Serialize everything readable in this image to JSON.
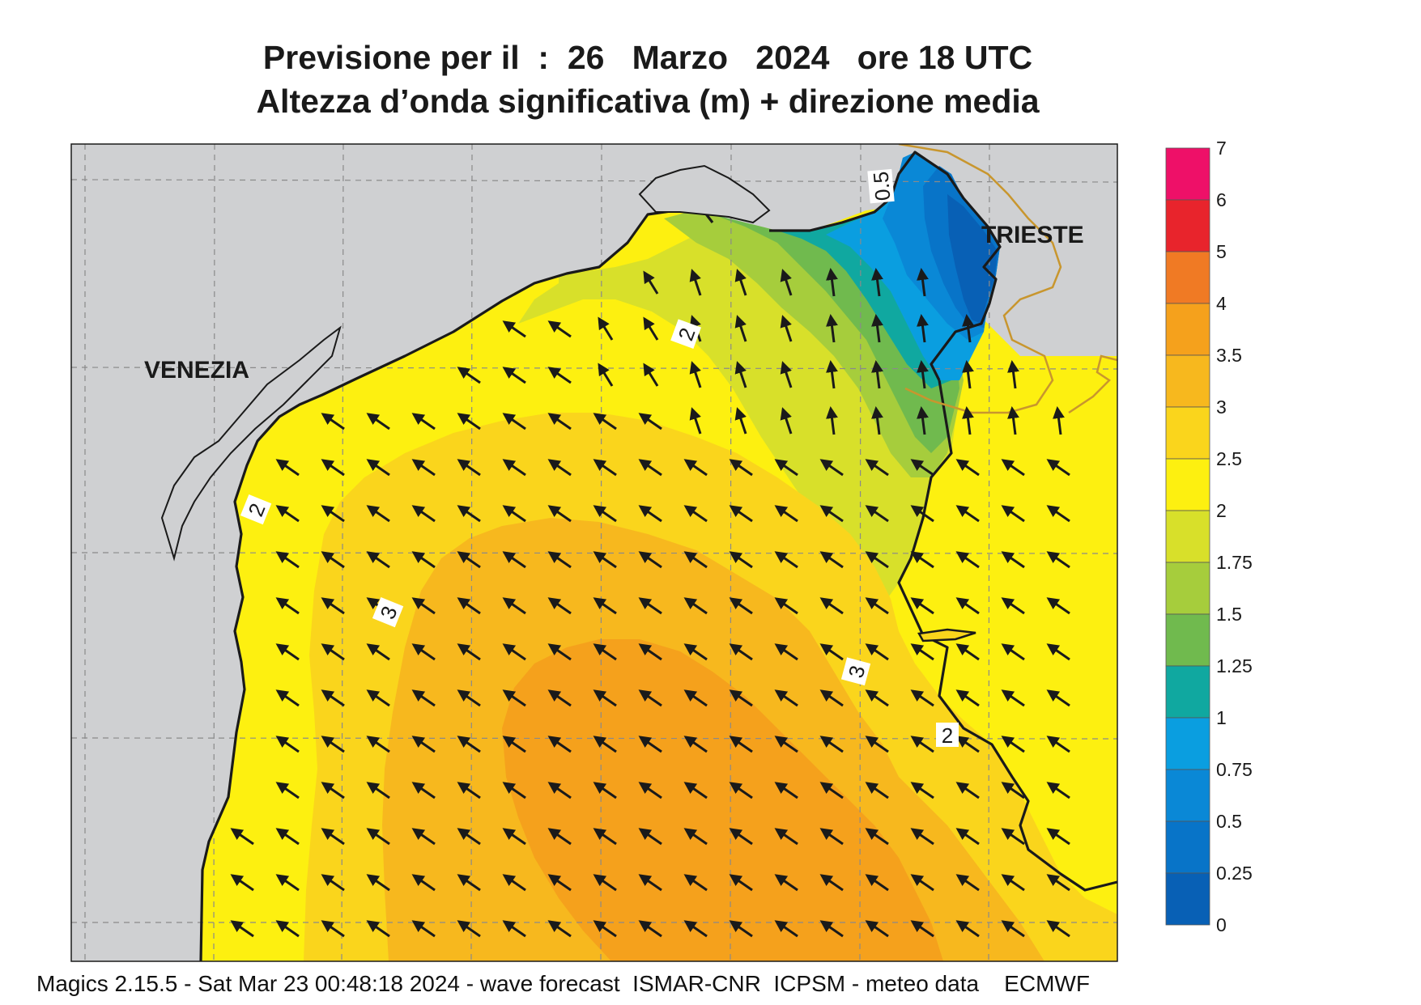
{
  "title": {
    "line1": "Previsione per il  :  26   Marzo   2024   ore 18 UTC",
    "line2": "Altezza d’onda significativa (m) + direzione media"
  },
  "map": {
    "cities": [
      {
        "name": "VENEZIA"
      },
      {
        "name": "TRIESTE"
      }
    ],
    "contour_labels": [
      "2",
      "2",
      "2",
      "3",
      "3",
      "0.5"
    ],
    "land_color": "#cfd0d2",
    "coast_color": "#1a1a1a",
    "border_color": "#c8962e",
    "arrow_color": "#1a1a1a",
    "arrow_direction": "north-west"
  },
  "legend": {
    "labels": [
      "7",
      "6",
      "5",
      "4",
      "3.5",
      "3",
      "2.5",
      "2",
      "1.75",
      "1.5",
      "1.25",
      "1",
      "0.75",
      "0.5",
      "0.25",
      "0"
    ],
    "colors": [
      "#ee1068",
      "#e8242c",
      "#f07a24",
      "#f5a11c",
      "#f7b81e",
      "#fad51c",
      "#fdf010",
      "#d8e02a",
      "#a6cd3c",
      "#70ba4e",
      "#10a8a0",
      "#0a9ee0",
      "#0a88d6",
      "#0874c8",
      "#0860b5"
    ]
  },
  "footer": {
    "text": "Magics 2.15.5 - Sat Mar 23 00:48:18 2024 - wave forecast  ISMAR-CNR  ICPSM - meteo data    ECMWF"
  }
}
